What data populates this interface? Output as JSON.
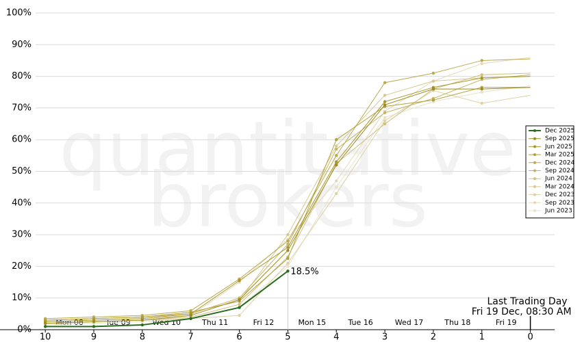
{
  "chart_data": {
    "type": "line",
    "watermark": [
      "quantitative",
      "brokers"
    ],
    "x": [
      10,
      9,
      8,
      7,
      6,
      5,
      4,
      3,
      2,
      1,
      0
    ],
    "xlim": [
      10.2,
      -0.5
    ],
    "xticks": [
      10,
      9,
      8,
      7,
      6,
      5,
      4,
      3,
      2,
      1,
      0
    ],
    "day_labels": [
      "Mon 08",
      "Tue 09",
      "Wed 10",
      "Thu 11",
      "Fri 12",
      "Mon 15",
      "Tue 16",
      "Wed 17",
      "Thu 18",
      "Fri 19"
    ],
    "ylim": [
      0,
      100
    ],
    "yticks": [
      {
        "value": 0,
        "label": "0%"
      },
      {
        "value": 10,
        "label": "10%"
      },
      {
        "value": 20,
        "label": "20%"
      },
      {
        "value": 30,
        "label": "30%"
      },
      {
        "value": 40,
        "label": "40%"
      },
      {
        "value": 50,
        "label": "50%"
      },
      {
        "value": 60,
        "label": "60%"
      },
      {
        "value": 70,
        "label": "70%"
      },
      {
        "value": 80,
        "label": "80%"
      },
      {
        "value": 90,
        "label": "90%"
      },
      {
        "value": 100,
        "label": "100%"
      }
    ],
    "grid": true,
    "legend": "right",
    "last_trading_day": {
      "label": "Last Trading Day",
      "date": "Fri 19 Dec, 08:30 AM",
      "x": 0
    },
    "series": [
      {
        "name": "Dec 2025",
        "color": "#2b6b1f",
        "values": [
          1,
          1,
          1.5,
          3.5,
          7,
          18.5,
          null,
          null,
          null,
          null,
          null
        ],
        "value_labels": [
          null,
          null,
          null,
          null,
          null,
          "18.5%",
          null,
          null,
          null,
          null,
          null
        ]
      },
      {
        "name": "Sep 2025",
        "color": "#9c8b1f",
        "values": [
          2,
          2.5,
          3,
          4.5,
          9.5,
          25,
          52,
          71,
          76,
          76,
          76.5
        ]
      },
      {
        "name": "Jun 2025",
        "color": "#a8962a",
        "values": [
          2.5,
          3,
          3.5,
          5,
          15.5,
          26,
          53,
          72,
          76.5,
          79.5,
          80
        ]
      },
      {
        "name": "Mar 2025",
        "color": "#b3a13c",
        "values": [
          3,
          3.5,
          4,
          5.5,
          9,
          22.5,
          60,
          70.5,
          72.5,
          76.5,
          76.5
        ]
      },
      {
        "name": "Dec 2024",
        "color": "#bda94e",
        "values": [
          3.5,
          4,
          4.5,
          6,
          16,
          28,
          55,
          78,
          81,
          85,
          85.5
        ]
      },
      {
        "name": "Sep 2024",
        "color": "#c6b466",
        "values": [
          3,
          3.5,
          4,
          5,
          10,
          27,
          57,
          68.5,
          73,
          79,
          80.5
        ]
      },
      {
        "name": "Jun 2024",
        "color": "#cfc07e",
        "values": [
          2,
          2.5,
          3,
          4,
          8,
          23,
          52.5,
          65,
          76,
          80.5,
          81
        ]
      },
      {
        "name": "Mar 2024",
        "color": "#d6ca92",
        "values": [
          3,
          3.5,
          4,
          5.5,
          9,
          30,
          58,
          74,
          78.5,
          79.5,
          80
        ]
      },
      {
        "name": "Dec 2023",
        "color": "#ddd2a6",
        "values": [
          2,
          2.5,
          3,
          3.5,
          4.5,
          21,
          43,
          66,
          75.5,
          71.5,
          74
        ]
      },
      {
        "name": "Sep 2023",
        "color": "#e3dab8",
        "values": [
          2.5,
          3,
          3.5,
          4.5,
          15,
          28.5,
          47,
          69,
          78.5,
          84,
          86
        ]
      },
      {
        "name": "Jun 2023",
        "color": "#e9e2c8",
        "values": [
          1.5,
          2,
          2.5,
          3.5,
          7,
          20,
          45,
          67,
          72,
          75,
          77
        ]
      }
    ]
  }
}
